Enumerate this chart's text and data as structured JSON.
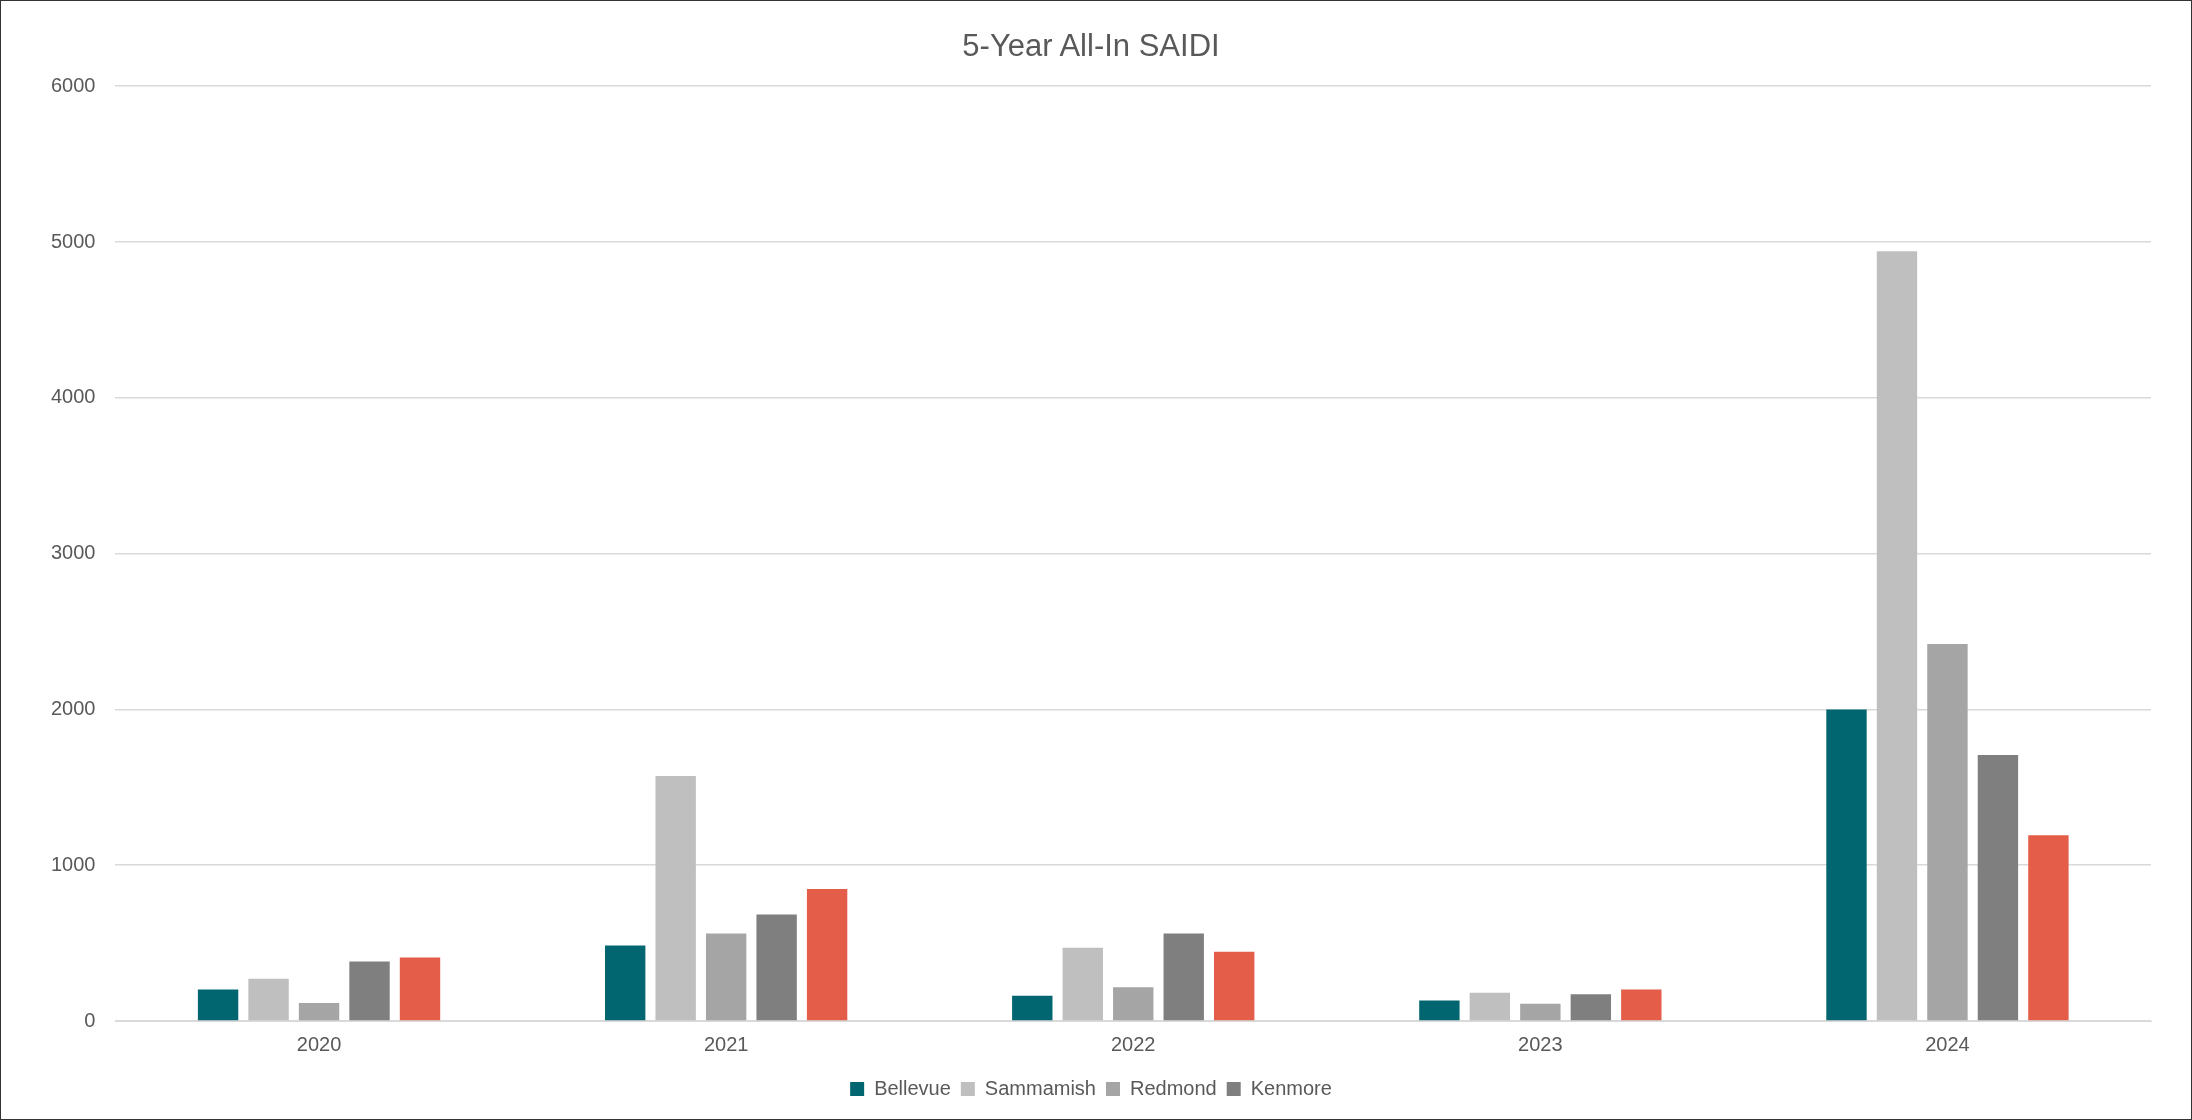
{
  "chart_data": {
    "type": "bar",
    "title": "5-Year All-In SAIDI",
    "categories": [
      "2020",
      "2021",
      "2022",
      "2023",
      "2024"
    ],
    "series": [
      {
        "name": "Bellevue",
        "color": "#026670",
        "values": [
          202,
          485,
          162,
          131,
          2000
        ]
      },
      {
        "name": "Sammamish",
        "color": "#bfbfbf",
        "values": [
          271,
          1573,
          470,
          182,
          4940
        ]
      },
      {
        "name": "Redmond",
        "color": "#a5a5a5",
        "values": [
          115,
          561,
          217,
          111,
          2420
        ]
      },
      {
        "name": "Kenmore",
        "color": "#7f7f7f",
        "values": [
          382,
          683,
          561,
          172,
          1707
        ]
      },
      {
        "color": "#e35d49",
        "values": [
          408,
          847,
          444,
          202,
          1192
        ]
      }
    ],
    "ylim": [
      0,
      6000
    ],
    "yticks": [
      0,
      1000,
      2000,
      3000,
      4000,
      5000,
      6000
    ],
    "grid": "y",
    "legend": "bottom"
  }
}
